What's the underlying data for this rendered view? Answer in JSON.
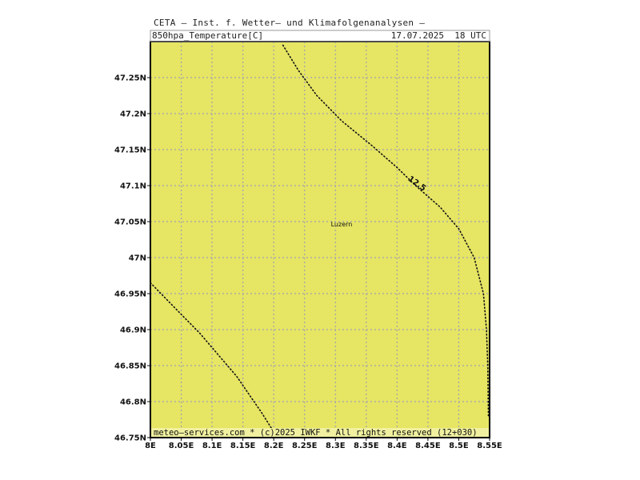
{
  "header": {
    "title": "CETA – Inst. f. Wetter– und Klimafolgenanalysen –",
    "variable": "850hpa_Temperature[C]",
    "datetime": "17.07.2025  18 UTC"
  },
  "map": {
    "fill_color": "#e6e564",
    "grid_color": "#a0a0b0",
    "lon_range": [
      8.0,
      8.55
    ],
    "lat_range": [
      46.75,
      47.3
    ],
    "lon_ticks": [
      {
        "value": 8.0,
        "label": "8E"
      },
      {
        "value": 8.05,
        "label": "8.05E"
      },
      {
        "value": 8.1,
        "label": "8.1E"
      },
      {
        "value": 8.15,
        "label": "8.15E"
      },
      {
        "value": 8.2,
        "label": "8.2E"
      },
      {
        "value": 8.25,
        "label": "8.25E"
      },
      {
        "value": 8.3,
        "label": "8.3E"
      },
      {
        "value": 8.35,
        "label": "8.35E"
      },
      {
        "value": 8.4,
        "label": "8.4E"
      },
      {
        "value": 8.45,
        "label": "8.45E"
      },
      {
        "value": 8.5,
        "label": "8.5E"
      },
      {
        "value": 8.55,
        "label": "8.55E"
      }
    ],
    "lat_ticks": [
      {
        "value": 46.75,
        "label": "46.75N"
      },
      {
        "value": 46.8,
        "label": "46.8N"
      },
      {
        "value": 46.85,
        "label": "46.85N"
      },
      {
        "value": 46.9,
        "label": "46.9N"
      },
      {
        "value": 46.95,
        "label": "46.95N"
      },
      {
        "value": 47.0,
        "label": "47N"
      },
      {
        "value": 47.05,
        "label": "47.05N"
      },
      {
        "value": 47.1,
        "label": "47.1N"
      },
      {
        "value": 47.15,
        "label": "47.15N"
      },
      {
        "value": 47.2,
        "label": "47.2N"
      },
      {
        "value": 47.25,
        "label": "47.25N"
      }
    ],
    "city": {
      "name": "Luzern",
      "lon": 8.31,
      "lat": 47.05
    },
    "contours": [
      {
        "label": "12.5",
        "label_at": {
          "lon": 8.43,
          "lat": 47.1
        },
        "points": [
          {
            "lon": 8.215,
            "lat": 47.295
          },
          {
            "lon": 8.24,
            "lat": 47.26
          },
          {
            "lon": 8.27,
            "lat": 47.225
          },
          {
            "lon": 8.31,
            "lat": 47.19
          },
          {
            "lon": 8.36,
            "lat": 47.155
          },
          {
            "lon": 8.4,
            "lat": 47.125
          },
          {
            "lon": 8.43,
            "lat": 47.1
          },
          {
            "lon": 8.47,
            "lat": 47.07
          },
          {
            "lon": 8.5,
            "lat": 47.04
          },
          {
            "lon": 8.525,
            "lat": 47.0
          },
          {
            "lon": 8.54,
            "lat": 46.95
          },
          {
            "lon": 8.545,
            "lat": 46.9
          },
          {
            "lon": 8.547,
            "lat": 46.85
          },
          {
            "lon": 8.548,
            "lat": 46.78
          }
        ]
      },
      {
        "label": "",
        "points": [
          {
            "lon": 8.0,
            "lat": 46.965
          },
          {
            "lon": 8.04,
            "lat": 46.93
          },
          {
            "lon": 8.08,
            "lat": 46.895
          },
          {
            "lon": 8.11,
            "lat": 46.865
          },
          {
            "lon": 8.14,
            "lat": 46.835
          },
          {
            "lon": 8.16,
            "lat": 46.81
          },
          {
            "lon": 8.18,
            "lat": 46.785
          },
          {
            "lon": 8.2,
            "lat": 46.758
          }
        ]
      }
    ]
  },
  "footer": {
    "text": "meteo–services.com * (c)2025 IWKF * All rights reserved (12+030)"
  }
}
